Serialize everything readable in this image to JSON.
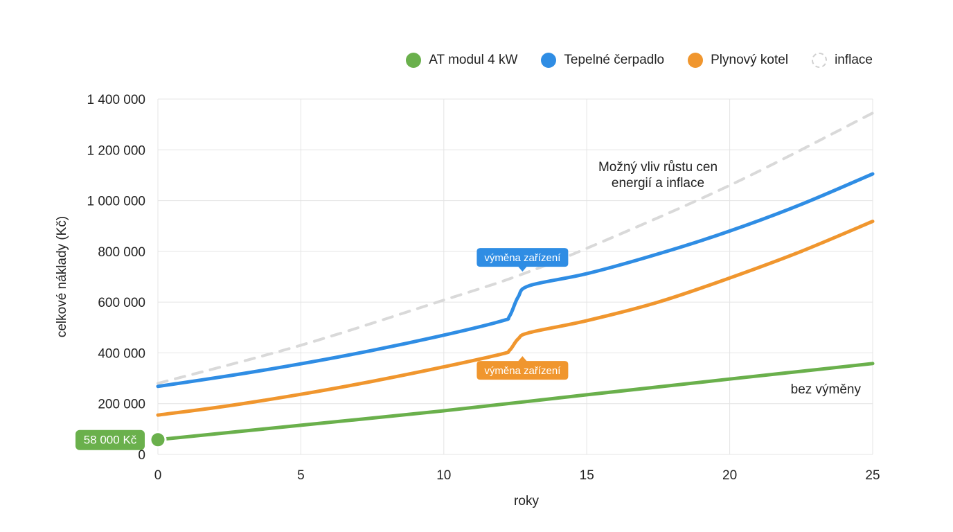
{
  "chart_data": {
    "type": "line",
    "xlabel": "roky",
    "ylabel": "celkové náklady (Kč)",
    "xlim": [
      0,
      25
    ],
    "ylim": [
      0,
      1400000
    ],
    "x_ticks": [
      0,
      5,
      10,
      15,
      20,
      25
    ],
    "y_ticks": [
      0,
      200000,
      400000,
      600000,
      800000,
      1000000,
      1200000,
      1400000
    ],
    "x_tick_labels": [
      "0",
      "5",
      "10",
      "15",
      "20",
      "25"
    ],
    "y_tick_labels": [
      "0",
      "200 000",
      "400 000",
      "600 000",
      "800 000",
      "1 000 000",
      "1 200 000",
      "1 400 000"
    ],
    "grid": true,
    "legend_position": "top-right",
    "series": [
      {
        "name": "AT modul 4 kW",
        "color": "#6ab04c",
        "style": "solid",
        "points": [
          [
            0,
            58000
          ],
          [
            5,
            115000
          ],
          [
            10,
            172000
          ],
          [
            15,
            235000
          ],
          [
            20,
            297000
          ],
          [
            25,
            358000
          ]
        ]
      },
      {
        "name": "Tepelné čerpadlo",
        "color": "#2f8de4",
        "style": "solid",
        "points": [
          [
            0,
            268000
          ],
          [
            2.5,
            310000
          ],
          [
            5,
            357000
          ],
          [
            7.5,
            410000
          ],
          [
            10,
            470000
          ],
          [
            12,
            525000
          ],
          [
            12.3,
            545000
          ],
          [
            12.6,
            620000
          ],
          [
            13,
            665000
          ],
          [
            15,
            712000
          ],
          [
            17.5,
            790000
          ],
          [
            20,
            880000
          ],
          [
            22.5,
            985000
          ],
          [
            25,
            1105000
          ]
        ]
      },
      {
        "name": "Plynový kotel",
        "color": "#f0962e",
        "style": "solid",
        "points": [
          [
            0,
            155000
          ],
          [
            2.5,
            192000
          ],
          [
            5,
            237000
          ],
          [
            7.5,
            288000
          ],
          [
            10,
            345000
          ],
          [
            12,
            395000
          ],
          [
            12.3,
            410000
          ],
          [
            12.6,
            455000
          ],
          [
            13,
            480000
          ],
          [
            15,
            527000
          ],
          [
            17.5,
            600000
          ],
          [
            20,
            695000
          ],
          [
            22.5,
            800000
          ],
          [
            25,
            918000
          ]
        ]
      },
      {
        "name": "inflace",
        "color": "#d9d9d9",
        "style": "dashed",
        "points": [
          [
            0,
            280000
          ],
          [
            5,
            430000
          ],
          [
            10,
            608000
          ],
          [
            12.5,
            700000
          ],
          [
            15,
            812000
          ],
          [
            20,
            1060000
          ],
          [
            25,
            1345000
          ]
        ]
      }
    ],
    "annotations": {
      "inflation_note_line1": "Možný vliv růstu cen",
      "inflation_note_line2": "energií a inflace",
      "no_replacement_note": "bez výměny",
      "start_value_label": "58 000 Kč",
      "start_value_point": [
        0,
        58000
      ],
      "replacement_label_heat_pump": "výměna zařízení",
      "replacement_point_heat_pump": [
        12.8,
        690000
      ],
      "replacement_label_gas": "výměna zařízení",
      "replacement_point_gas": [
        12.8,
        420000
      ]
    }
  }
}
